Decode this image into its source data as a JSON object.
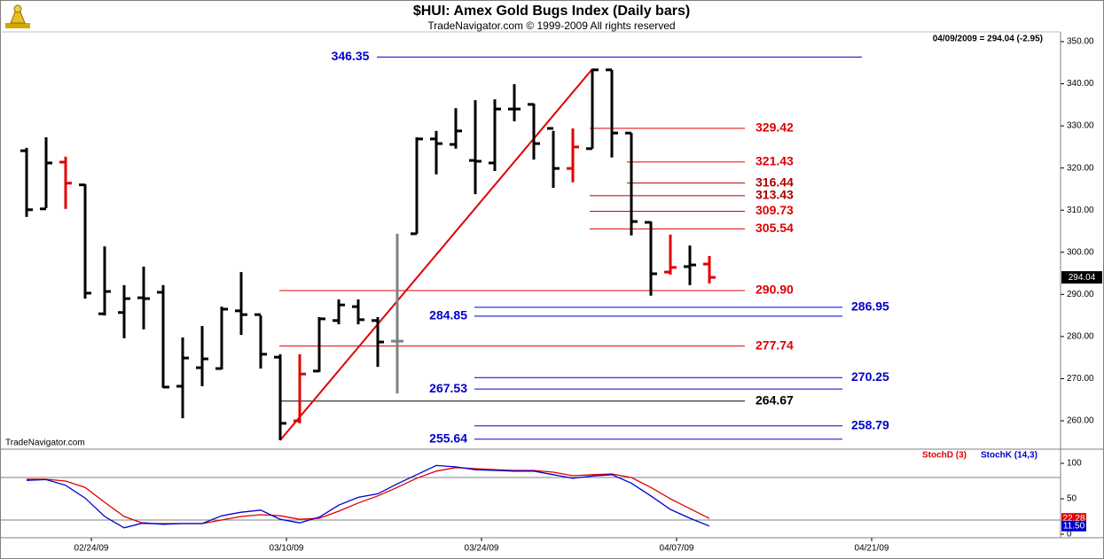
{
  "chart_data": [
    {
      "type": "ohlc",
      "title": "$HUI:  Amex Gold Bugs Index  (Daily bars)",
      "subtitle": "TradeNavigator.com © 1999-2009 All rights reserved",
      "annotation": "04/09/2009 = 294.04 (-2.95)",
      "watermark": "TradeNavigator.com",
      "categories": [
        null,
        null,
        null,
        "02/24/09",
        null,
        null,
        null,
        null,
        null,
        null,
        null,
        null,
        null,
        "03/10/09",
        null,
        null,
        null,
        null,
        null,
        null,
        null,
        null,
        null,
        "03/24/09",
        null,
        null,
        null,
        null,
        null,
        null,
        null,
        null,
        null,
        "04/07/09",
        null,
        null,
        null,
        null,
        null,
        null,
        null,
        null,
        null,
        "04/21/09"
      ],
      "open": [
        324.1,
        310.3,
        321.4,
        316.0,
        285.4,
        285.7,
        289.2,
        290.5,
        268.2,
        272.6,
        272.4,
        286.1,
        285.2,
        275.1,
        260.0,
        271.8,
        283.8,
        287.1,
        283.8,
        278.9,
        304.4,
        326.9,
        325.6,
        321.8,
        321.2,
        334.0,
        335.1,
        329.4,
        319.9,
        324.6,
        343.3,
        328.3,
        307.1,
        295.3,
        296.6,
        297.2,
        null,
        null,
        null,
        null,
        null,
        null,
        null,
        null
      ],
      "high": [
        324.8,
        327.3,
        322.7,
        316.2,
        301.4,
        292.2,
        296.6,
        292.2,
        279.8,
        282.5,
        287.1,
        295.3,
        285.0,
        275.8,
        275.8,
        284.6,
        288.8,
        288.8,
        284.6,
        304.4,
        327.3,
        328.8,
        334.2,
        336.1,
        336.3,
        339.9,
        335.3,
        328.8,
        329.4,
        343.5,
        343.3,
        328.3,
        307.3,
        304.2,
        301.6,
        299.1,
        null,
        null,
        null,
        null,
        null,
        null,
        null,
        null
      ],
      "low": [
        308.4,
        310.5,
        310.3,
        289.0,
        285.0,
        279.6,
        281.7,
        267.8,
        260.6,
        268.2,
        272.2,
        280.4,
        272.4,
        255.4,
        259.4,
        271.6,
        282.9,
        282.9,
        272.8,
        266.5,
        304.4,
        318.5,
        324.6,
        313.8,
        319.3,
        331.1,
        322.0,
        315.3,
        316.6,
        324.6,
        322.5,
        304.0,
        289.7,
        294.7,
        292.2,
        292.6,
        null,
        null,
        null,
        null,
        null,
        null,
        null,
        null
      ],
      "close": [
        310.1,
        321.2,
        316.4,
        290.3,
        290.7,
        289.0,
        289.0,
        268.0,
        274.9,
        274.7,
        286.5,
        285.2,
        275.8,
        259.4,
        271.1,
        284.2,
        287.5,
        284.0,
        278.7,
        278.9,
        326.9,
        325.8,
        328.8,
        321.6,
        334.0,
        334.0,
        325.8,
        319.9,
        325.0,
        343.3,
        328.3,
        307.3,
        294.9,
        296.4,
        296.99,
        294.04,
        null,
        null,
        null,
        null,
        null,
        null,
        null,
        null
      ],
      "bar_colors": [
        "#000",
        "#000",
        "#e00000",
        "#000",
        "#000",
        "#000",
        "#000",
        "#000",
        "#000",
        "#000",
        "#000",
        "#000",
        "#000",
        "#000",
        "#e00000",
        "#000",
        "#000",
        "#000",
        "#000",
        "#808080",
        "#000",
        "#000",
        "#000",
        "#000",
        "#000",
        "#000",
        "#000",
        "#000",
        "#e00000",
        "#000",
        "#000",
        "#000",
        "#000",
        "#e00000",
        "#000",
        "#e00000",
        null,
        null,
        null,
        null,
        null,
        null,
        null,
        null
      ],
      "trend_color": "#e00000",
      "levels": [
        {
          "value": 346.35,
          "label": "346.35",
          "color": "#0000cc"
        },
        {
          "value": 329.42,
          "label": "329.42",
          "color": "#e00000"
        },
        {
          "value": 321.43,
          "label": "321.43",
          "color": "#e00000"
        },
        {
          "value": 316.44,
          "label": "316.44",
          "color": "#b00000"
        },
        {
          "value": 313.43,
          "label": "313.43",
          "color": "#b00000"
        },
        {
          "value": 309.73,
          "label": "309.73",
          "color": "#e00000"
        },
        {
          "value": 305.54,
          "label": "305.54",
          "color": "#e00000"
        },
        {
          "value": 290.9,
          "label": "290.90",
          "color": "#e00000"
        },
        {
          "value": 286.95,
          "label": "286.95",
          "color": "#0000cc"
        },
        {
          "value": 284.85,
          "label": "284.85",
          "color": "#0000cc"
        },
        {
          "value": 277.74,
          "label": "277.74",
          "color": "#e00000"
        },
        {
          "value": 270.25,
          "label": "270.25",
          "color": "#0000cc"
        },
        {
          "value": 267.53,
          "label": "267.53",
          "color": "#0000cc"
        },
        {
          "value": 264.67,
          "label": "264.67",
          "color": "#000000"
        },
        {
          "value": 258.79,
          "label": "258.79",
          "color": "#0000cc"
        },
        {
          "value": 255.64,
          "label": "255.64",
          "color": "#0000cc"
        }
      ],
      "ylim": [
        253.69,
        352.1
      ],
      "yticks": [
        {
          "value": 260,
          "label": "260.00"
        },
        {
          "value": 270,
          "label": "270.00"
        },
        {
          "value": 280,
          "label": "280.00"
        },
        {
          "value": 290,
          "label": "290.00"
        },
        {
          "value": 300,
          "label": "300.00"
        },
        {
          "value": 310,
          "label": "310.00"
        },
        {
          "value": 320,
          "label": "320.00"
        },
        {
          "value": 330,
          "label": "330.00"
        },
        {
          "value": 340,
          "label": "340.00"
        },
        {
          "value": 350,
          "label": "350.00"
        }
      ]
    },
    {
      "type": "line",
      "series": [
        {
          "name": "StochD (3)",
          "color": "#e00000",
          "last_label": "22.28",
          "values": [
            77.5,
            77.5,
            75,
            66,
            45,
            25,
            15,
            15,
            15,
            15,
            20,
            25,
            27.5,
            26,
            21,
            22.5,
            32.5,
            44,
            54,
            66,
            79,
            89,
            94,
            92.5,
            91,
            90,
            90,
            87.5,
            82.5,
            84,
            85,
            80,
            66,
            50,
            36,
            22.28,
            null,
            null,
            null,
            null,
            null,
            null,
            null,
            null
          ]
        },
        {
          "name": "StochK (14,3)",
          "color": "#0000cc",
          "last_label": "11.50",
          "values": [
            76,
            77,
            69,
            51,
            25,
            9,
            16,
            14,
            15,
            15,
            26,
            31,
            34,
            21,
            16,
            24,
            41,
            52,
            57,
            71,
            84,
            97,
            95,
            91,
            90,
            89,
            89,
            84,
            79,
            82,
            84,
            72,
            54,
            35,
            22.5,
            11.5,
            null,
            null,
            null,
            null,
            null,
            null,
            null,
            null
          ]
        }
      ],
      "hlines": [
        20,
        80
      ],
      "ylim": [
        -5,
        118.75
      ],
      "yticks": [
        0,
        50,
        100
      ]
    }
  ]
}
